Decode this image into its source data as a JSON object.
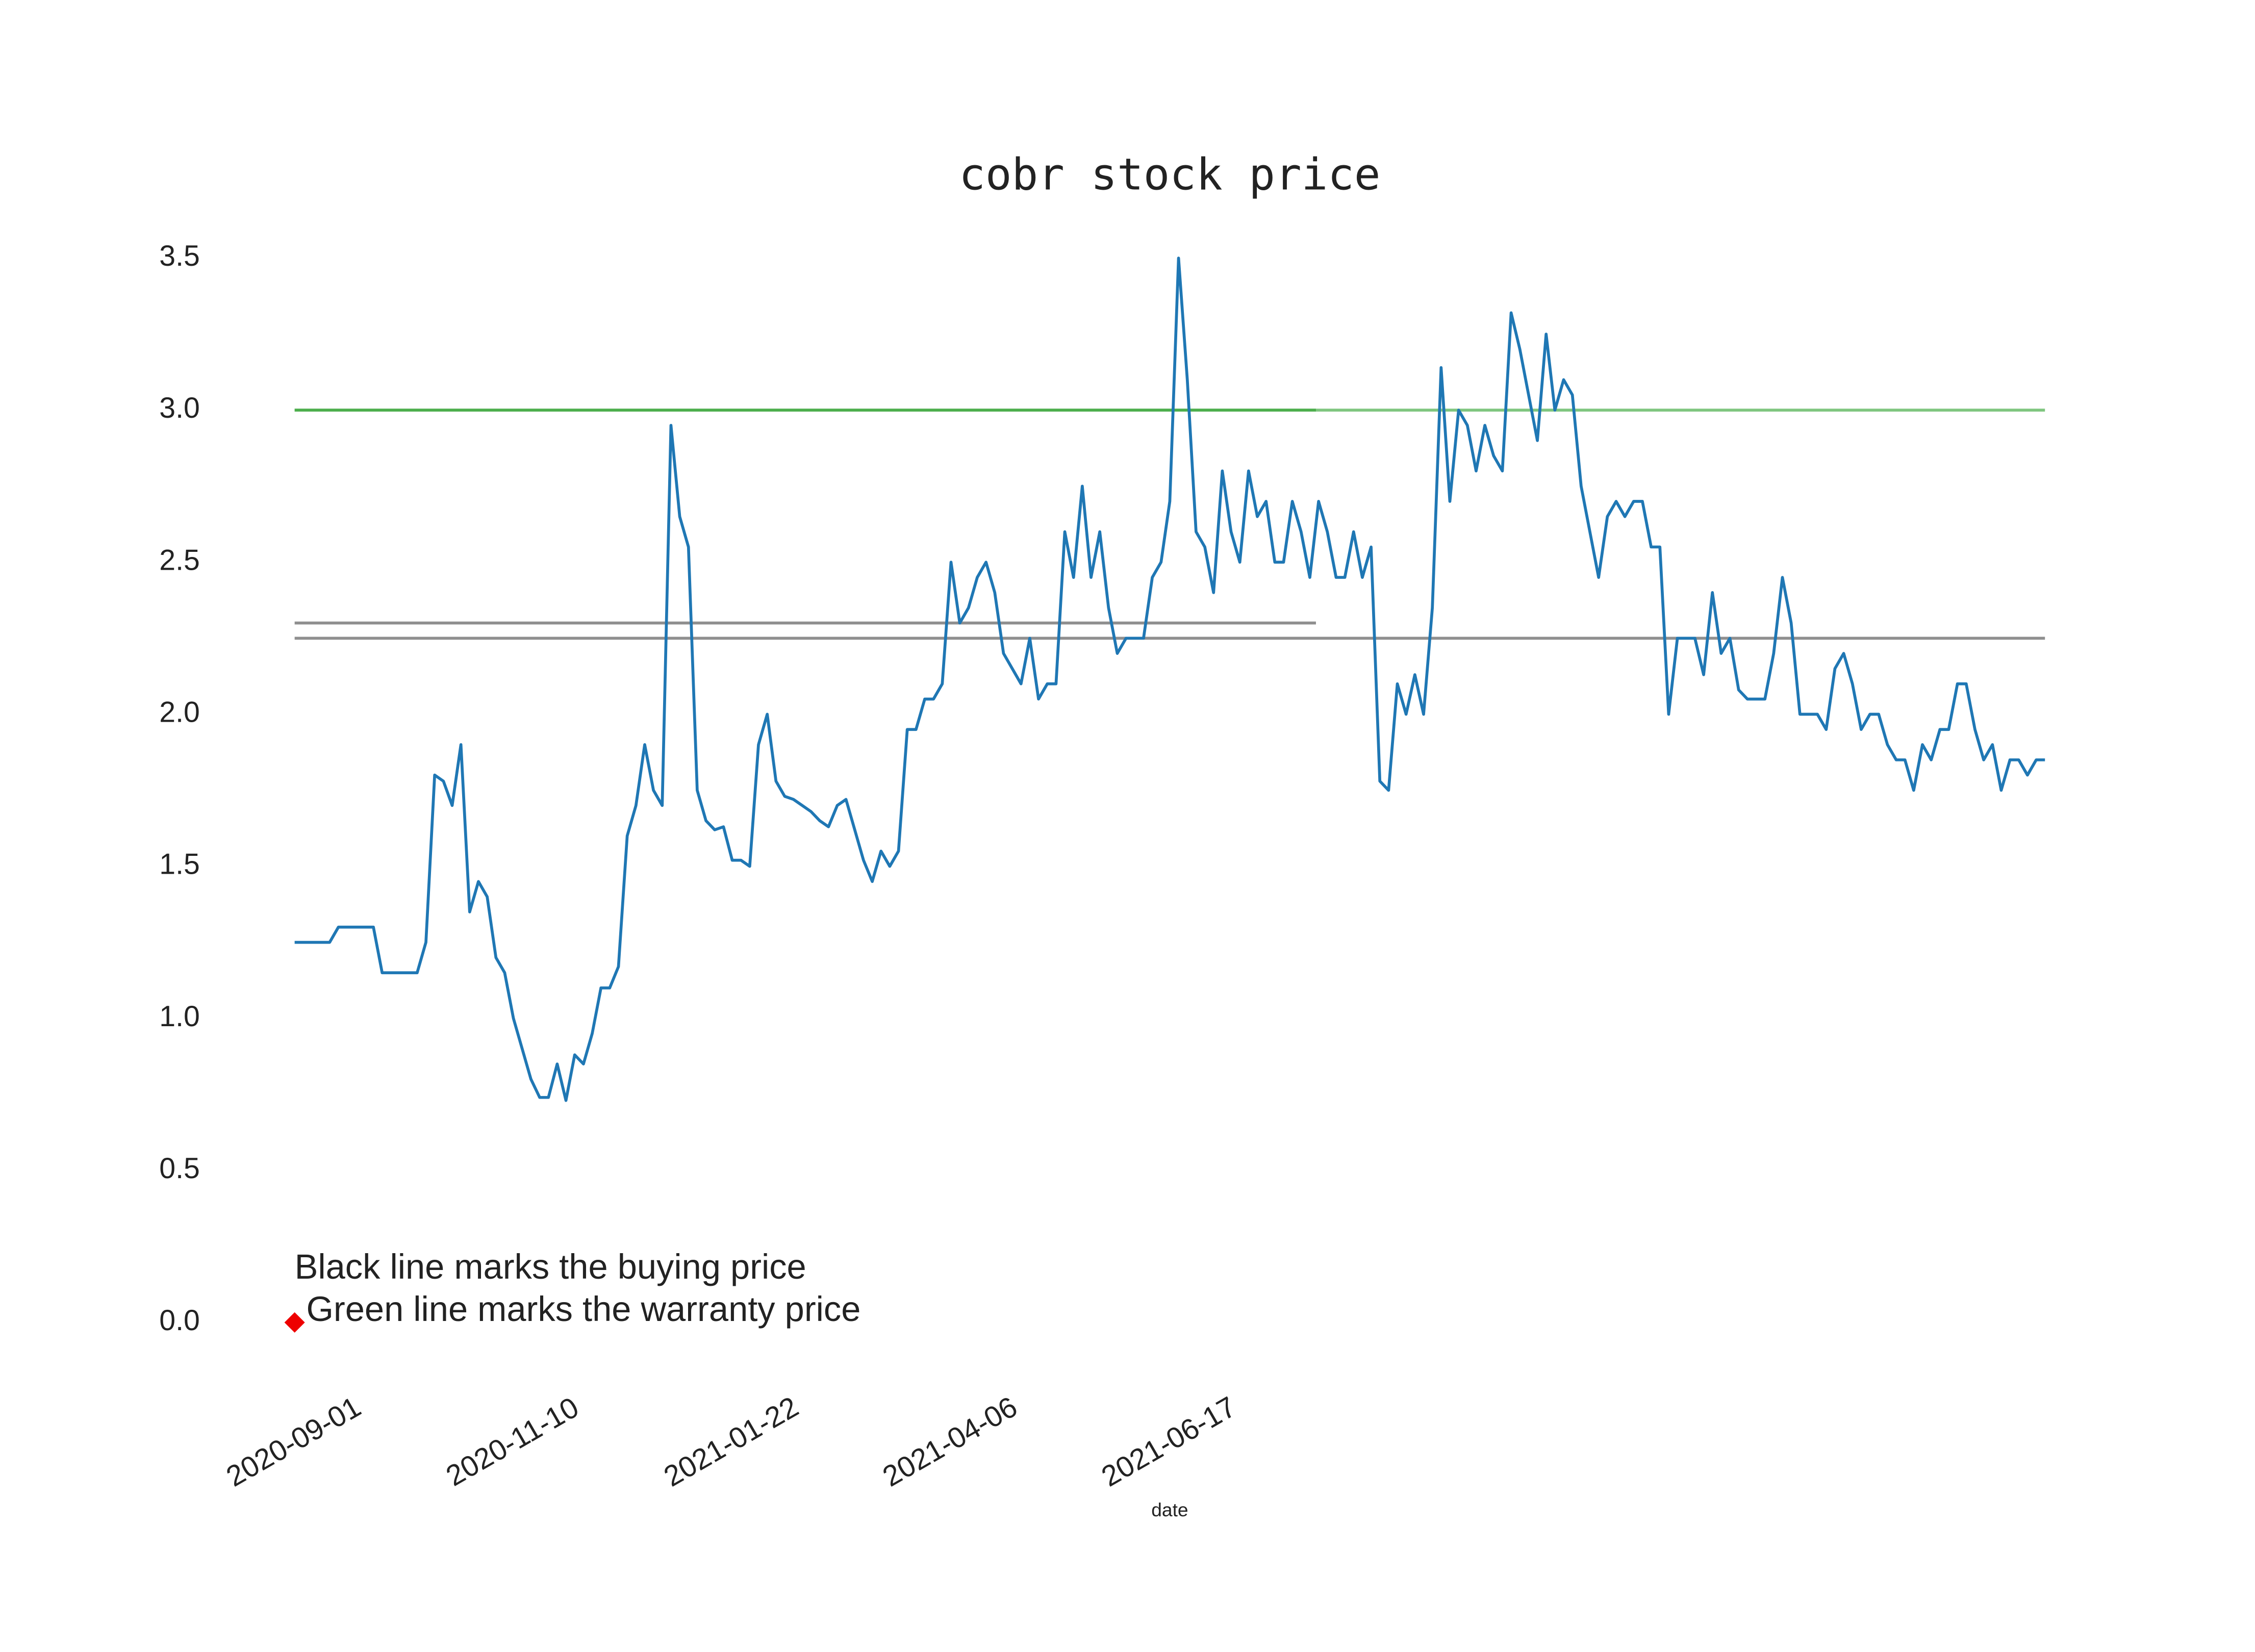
{
  "chart_data": {
    "type": "line",
    "title": "cobr stock price",
    "x_label": "date",
    "annotation": [
      "Black line marks the buying price",
      "Green line marks the warranty price"
    ],
    "categories": [
      "2020-09-01",
      null,
      null,
      null,
      null,
      null,
      null,
      null,
      null,
      null,
      null,
      null,
      null,
      null,
      null,
      null,
      null,
      null,
      null,
      null,
      null,
      null,
      null,
      null,
      null,
      "2020-11-10",
      null,
      null,
      null,
      null,
      null,
      null,
      null,
      null,
      null,
      null,
      null,
      null,
      null,
      null,
      null,
      null,
      null,
      null,
      null,
      null,
      null,
      null,
      null,
      null,
      "2021-01-22",
      null,
      null,
      null,
      null,
      null,
      null,
      null,
      null,
      null,
      null,
      null,
      null,
      null,
      null,
      null,
      null,
      null,
      null,
      null,
      null,
      null,
      null,
      null,
      null,
      "2021-04-06",
      null,
      null,
      null,
      null,
      null,
      null,
      null,
      null,
      null,
      null,
      null,
      null,
      null,
      null,
      null,
      null,
      null,
      null,
      null,
      null,
      null,
      null,
      null,
      null,
      "2021-06-17",
      null,
      null,
      null,
      null,
      null,
      null,
      null,
      null,
      null,
      null,
      null,
      null,
      null,
      null,
      null,
      null,
      null,
      null,
      null,
      null,
      null,
      null,
      null,
      null,
      null,
      null,
      null,
      null,
      null,
      null,
      null,
      null,
      null,
      null,
      null,
      null,
      null,
      null,
      null,
      null,
      null,
      null,
      null,
      null,
      null,
      null,
      null,
      null,
      null,
      null,
      null,
      null,
      null,
      null,
      null,
      null,
      null,
      null,
      null,
      null,
      null,
      null,
      null,
      null,
      null,
      null,
      null,
      null,
      null,
      null,
      null,
      null,
      null,
      null,
      null,
      null,
      null,
      null,
      null,
      null,
      null,
      null,
      null,
      null,
      null,
      null,
      null,
      null,
      null,
      null,
      null,
      null,
      null,
      null,
      null,
      null,
      null,
      null,
      null,
      null
    ],
    "series": [
      {
        "color": "#1f77b4",
        "values": [
          1.25,
          1.25,
          1.25,
          1.25,
          1.25,
          1.3,
          1.3,
          1.3,
          1.3,
          1.3,
          1.15,
          1.15,
          1.15,
          1.15,
          1.15,
          1.25,
          1.8,
          1.78,
          1.7,
          1.9,
          1.35,
          1.45,
          1.4,
          1.2,
          1.15,
          1.0,
          0.9,
          0.8,
          0.74,
          0.74,
          0.85,
          0.73,
          0.88,
          0.85,
          0.95,
          1.1,
          1.1,
          1.17,
          1.6,
          1.7,
          1.9,
          1.75,
          1.7,
          2.95,
          2.65,
          2.55,
          1.75,
          1.65,
          1.62,
          1.63,
          1.52,
          1.52,
          1.5,
          1.9,
          2.0,
          1.78,
          1.73,
          1.72,
          1.7,
          1.68,
          1.65,
          1.63,
          1.7,
          1.72,
          1.62,
          1.52,
          1.45,
          1.55,
          1.5,
          1.55,
          1.95,
          1.95,
          2.05,
          2.05,
          2.1,
          2.5,
          2.3,
          2.35,
          2.45,
          2.5,
          2.4,
          2.2,
          2.15,
          2.1,
          2.25,
          2.05,
          2.1,
          2.1,
          2.6,
          2.45,
          2.75,
          2.45,
          2.6,
          2.35,
          2.2,
          2.25,
          2.25,
          2.25,
          2.45,
          2.5,
          2.7,
          3.5,
          3.1,
          2.6,
          2.55,
          2.4,
          2.8,
          2.6,
          2.5,
          2.8,
          2.65,
          2.7,
          2.5,
          2.5,
          2.7,
          2.6,
          2.45,
          2.7,
          2.6,
          2.45,
          2.45,
          2.6,
          2.45,
          2.55,
          1.78,
          1.75,
          2.1,
          2.0,
          2.13,
          2.0,
          2.35,
          3.14,
          2.7,
          3.0,
          2.95,
          2.8,
          2.95,
          2.85,
          2.8,
          3.32,
          3.2,
          3.05,
          2.9,
          3.25,
          3.0,
          3.1,
          3.05,
          2.75,
          2.6,
          2.45,
          2.65,
          2.7,
          2.65,
          2.7,
          2.7,
          2.55,
          2.55,
          2.0,
          2.25,
          2.25,
          2.25,
          2.13,
          2.4,
          2.2,
          2.25,
          2.08,
          2.05,
          2.05,
          2.05,
          2.2,
          2.45,
          2.3,
          2.0,
          2.0,
          2.0,
          1.95,
          2.15,
          2.2,
          2.1,
          1.95,
          2.0,
          2.0,
          1.9,
          1.85,
          1.85,
          1.75,
          1.9,
          1.85,
          1.95,
          1.95,
          2.1,
          2.1,
          1.95,
          1.85,
          1.9,
          1.75,
          1.85,
          1.85,
          1.8,
          1.85,
          1.85
        ]
      }
    ],
    "hlines": [
      {
        "value": 3.0,
        "color": "#2ca02c",
        "xrange": [
          0,
          116.7
        ]
      },
      {
        "value": 3.0,
        "color": "#2ca02c",
        "xrange": [
          0,
          200
        ]
      },
      {
        "value": 2.3,
        "color": "#444444",
        "xrange": [
          0,
          116.7
        ]
      },
      {
        "value": 2.25,
        "color": "#444444",
        "xrange": [
          0,
          200
        ]
      }
    ],
    "marker": {
      "x": 0,
      "y": 0.0,
      "color": "#ee0000"
    },
    "ylim": [
      0,
      3.5
    ],
    "yticks": [
      {
        "value": 0,
        "label": "0.0"
      },
      0.5,
      {
        "value": 1,
        "label": "1.0"
      },
      1.5,
      {
        "value": 2,
        "label": "2.0"
      },
      2.5,
      {
        "value": 3,
        "label": "3.0"
      },
      3.5
    ]
  }
}
